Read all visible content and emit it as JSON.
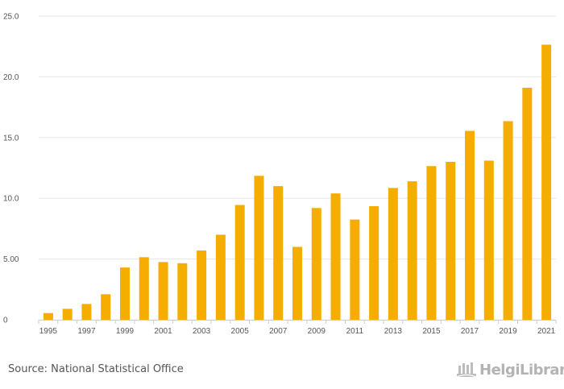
{
  "chart_data": {
    "type": "bar",
    "title": "",
    "xlabel": "",
    "ylabel": "",
    "ylim": [
      0,
      25
    ],
    "grid": true,
    "categories": [
      "1995",
      "1996",
      "1997",
      "1998",
      "1999",
      "2000",
      "2001",
      "2002",
      "2003",
      "2004",
      "2005",
      "2006",
      "2007",
      "2008",
      "2009",
      "2010",
      "2011",
      "2012",
      "2013",
      "2014",
      "2015",
      "2016",
      "2017",
      "2018",
      "2019",
      "2020",
      "2021"
    ],
    "values": [
      0.55,
      0.9,
      1.3,
      2.1,
      4.3,
      5.15,
      4.75,
      4.65,
      5.7,
      7.0,
      9.45,
      11.85,
      11.0,
      6.0,
      9.2,
      10.4,
      8.25,
      9.35,
      10.85,
      11.4,
      12.65,
      13.0,
      15.55,
      13.1,
      16.35,
      19.1,
      22.65
    ],
    "y_ticks": [
      {
        "value": 0,
        "label": "0"
      },
      {
        "value": 5,
        "label": "5.00"
      },
      {
        "value": 10,
        "label": "10.0"
      },
      {
        "value": 15,
        "label": "15.0"
      },
      {
        "value": 20,
        "label": "20.0"
      },
      {
        "value": 25,
        "label": "25.0"
      }
    ],
    "x_tick_labels": [
      "1995",
      "1997",
      "1999",
      "2001",
      "2003",
      "2005",
      "2007",
      "2009",
      "2011",
      "2013",
      "2015",
      "2017",
      "2019",
      "2021"
    ],
    "bar_color": "#f5ad00",
    "grid_color": "#e6e6e6",
    "axis_color": "#cccccc"
  },
  "footer": {
    "source": "Source: National Statistical Office",
    "brand": "HelgiLibrary"
  }
}
